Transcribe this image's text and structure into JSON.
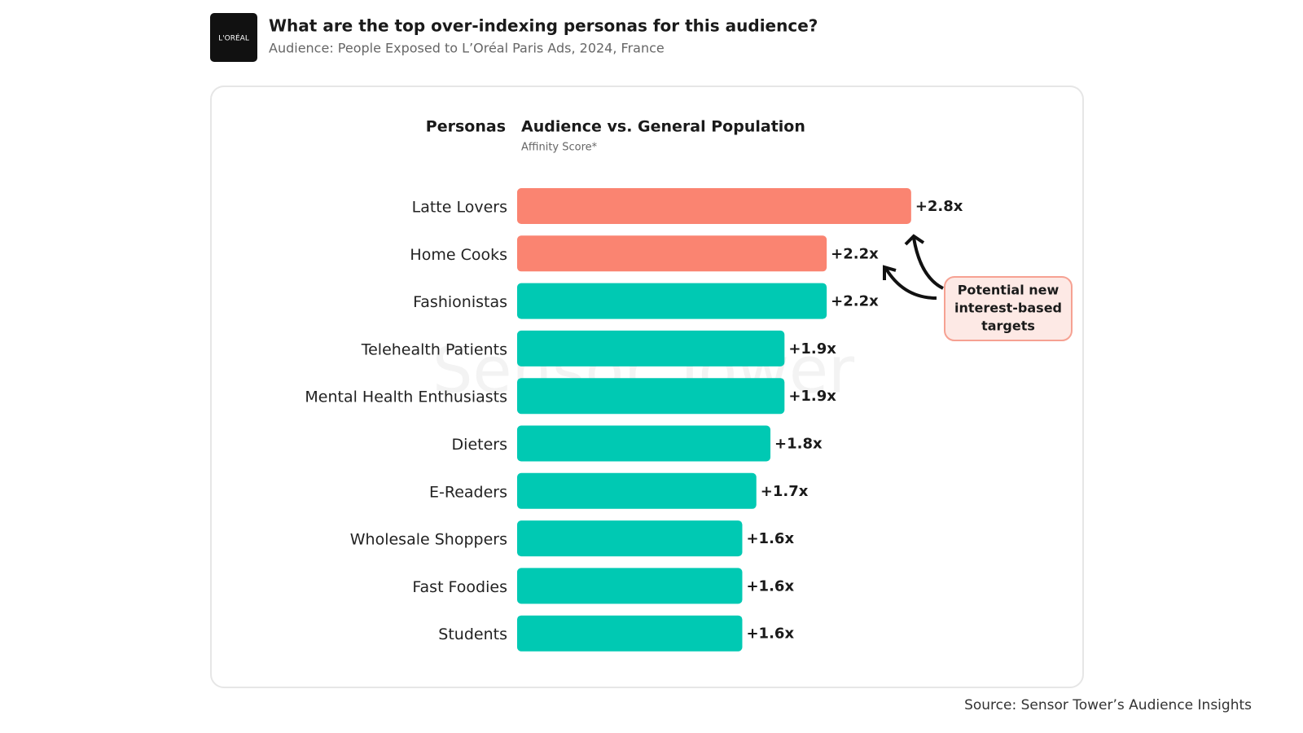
{
  "logo": "L'ORÉAL",
  "header": {
    "title": "What are the top over-indexing personas for this audience?",
    "subtitle": "Audience: People Exposed to L’Oréal Paris Ads, 2024, France"
  },
  "chart_data": {
    "type": "bar",
    "orientation": "horizontal",
    "category_header": "Personas",
    "title": "Audience vs. General Population",
    "subtitle": "Affinity Score*",
    "categories": [
      "Latte Lovers",
      "Home Cooks",
      "Fashionistas",
      "Telehealth Patients",
      "Mental Health Enthusiasts",
      "Dieters",
      "E-Readers",
      "Wholesale Shoppers",
      "Fast Foodies",
      "Students"
    ],
    "values": [
      2.8,
      2.2,
      2.2,
      1.9,
      1.9,
      1.8,
      1.7,
      1.6,
      1.6,
      1.6
    ],
    "value_labels": [
      "+2.8x",
      "+2.2x",
      "+2.2x",
      "+1.9x",
      "+1.9x",
      "+1.8x",
      "+1.7x",
      "+1.6x",
      "+1.6x",
      "+1.6x"
    ],
    "colors": [
      "#fa8471",
      "#fa8471",
      "#00c9b3",
      "#00c9b3",
      "#00c9b3",
      "#00c9b3",
      "#00c9b3",
      "#00c9b3",
      "#00c9b3",
      "#00c9b3"
    ],
    "annotation": [
      "Potential new",
      "interest-based",
      "targets"
    ],
    "watermark": "Sensor Tower"
  },
  "source": "Source: Sensor Tower’s Audience Insights"
}
